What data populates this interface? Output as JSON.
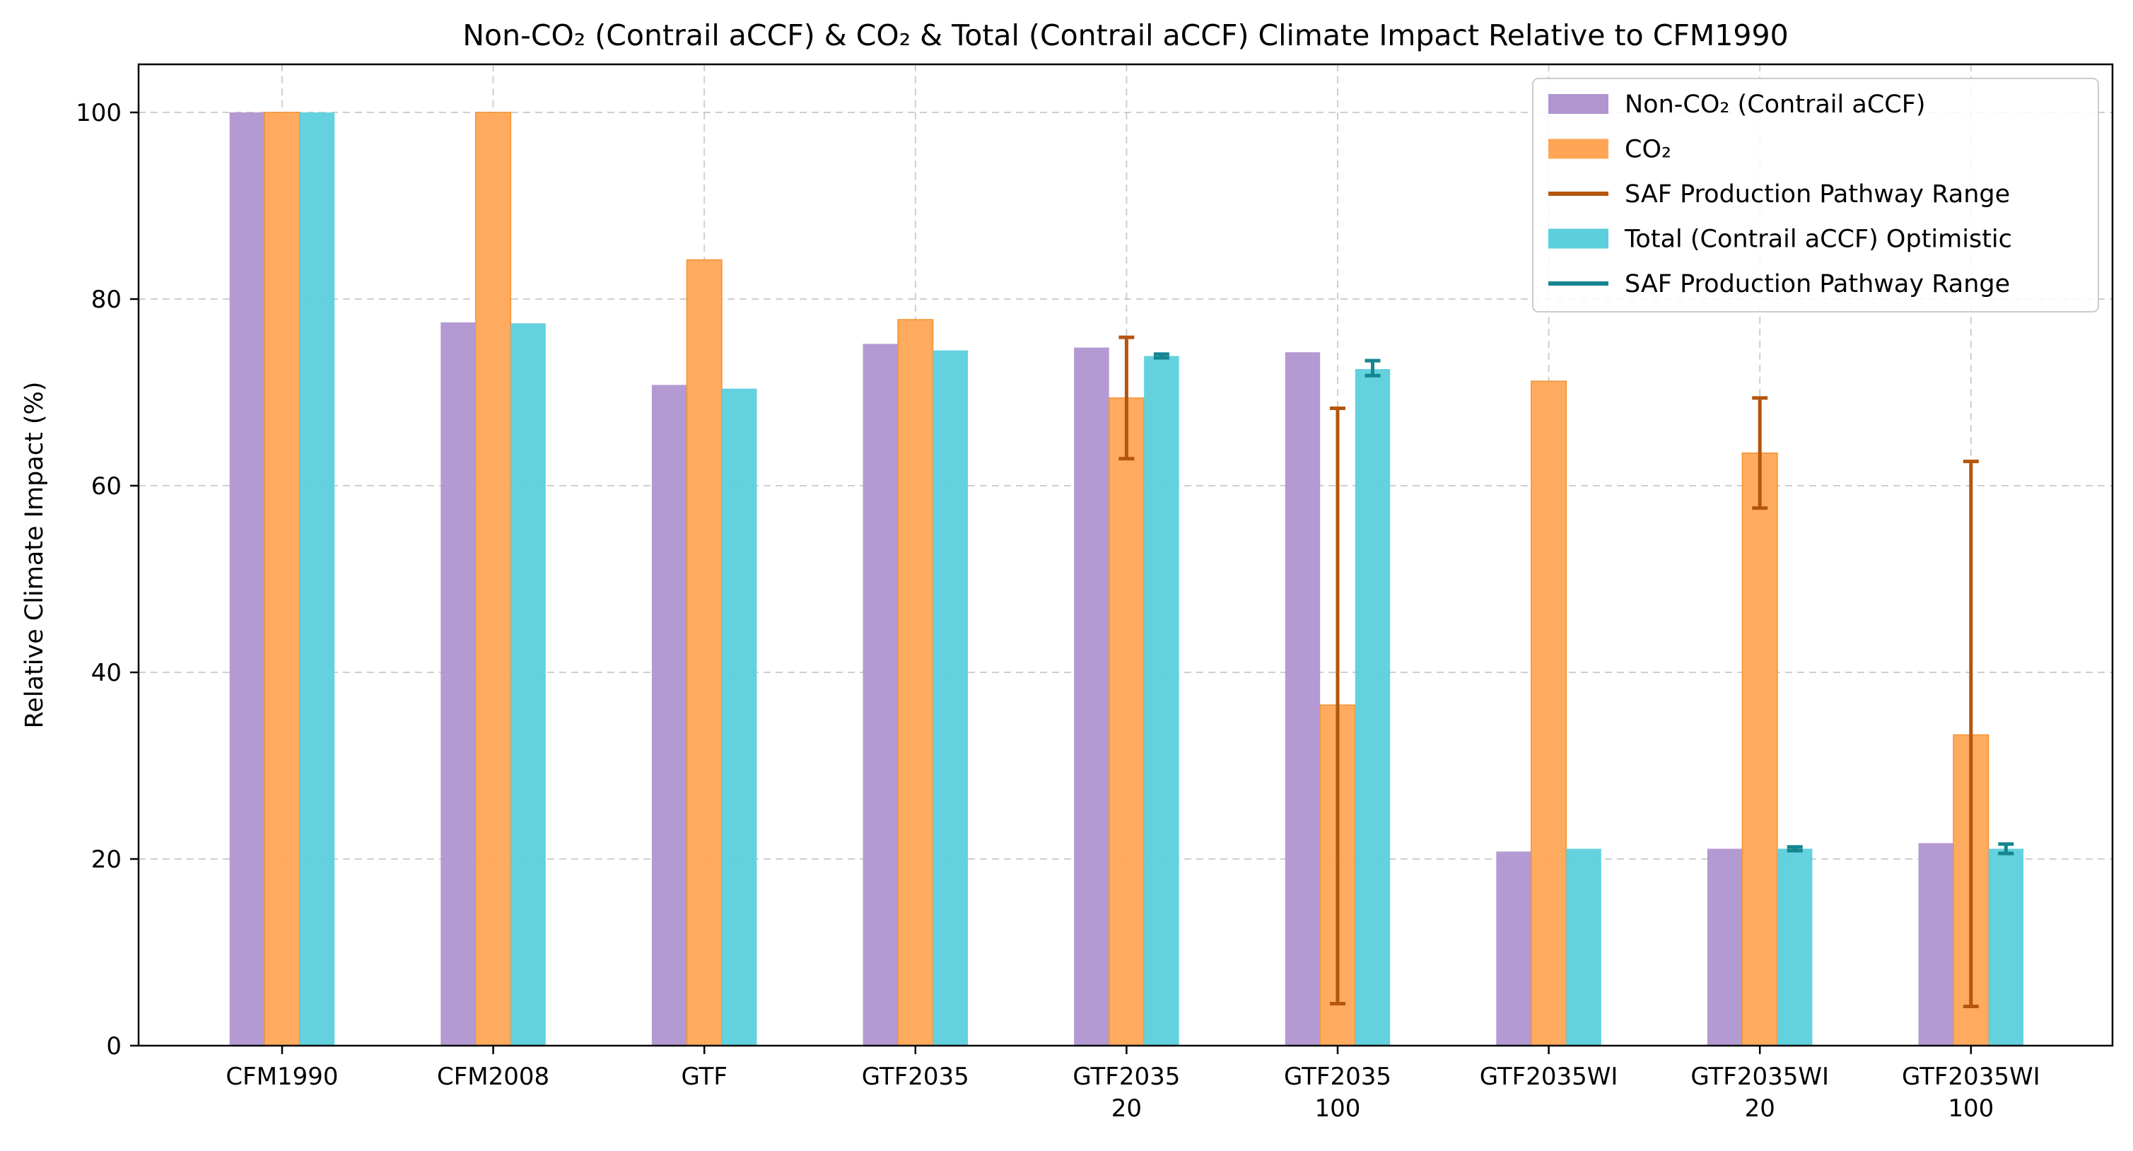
{
  "chart_data": {
    "type": "bar",
    "title": "Non-CO₂ (Contrail aCCF) & CO₂ & Total (Contrail aCCF) Climate Impact Relative to CFM1990",
    "xlabel": "",
    "ylabel": "Relative Climate Impact (%)",
    "ylim": [
      0,
      105
    ],
    "yticks": [
      0,
      20,
      40,
      60,
      80,
      100
    ],
    "grid": true,
    "legend_position": "top-right",
    "categories": [
      [
        "CFM1990"
      ],
      [
        "CFM2008"
      ],
      [
        "GTF"
      ],
      [
        "GTF2035"
      ],
      [
        "GTF2035",
        "20"
      ],
      [
        "GTF2035",
        "100"
      ],
      [
        "GTF2035WI"
      ],
      [
        "GTF2035WI",
        "20"
      ],
      [
        "GTF2035WI",
        "100"
      ]
    ],
    "series": [
      {
        "name": "Non-CO₂ (Contrail aCCF)",
        "color": "#b095d0",
        "values": [
          100,
          77.5,
          70.8,
          75.2,
          74.8,
          74.3,
          20.8,
          21.1,
          21.7
        ]
      },
      {
        "name": "CO₂",
        "color": "#ffa656",
        "edge_color": "#f39234",
        "values": [
          100,
          100,
          84.2,
          77.8,
          69.4,
          36.5,
          71.2,
          63.5,
          33.3
        ],
        "error_range": [
          null,
          null,
          null,
          null,
          [
            62.9,
            75.9
          ],
          [
            4.5,
            68.3
          ],
          null,
          [
            57.6,
            69.4
          ],
          [
            4.2,
            62.6
          ]
        ]
      },
      {
        "name": "Total (Contrail aCCF) Optimistic",
        "color": "#5ccfdd",
        "values": [
          100,
          77.4,
          70.4,
          74.5,
          73.9,
          72.5,
          21.1,
          21.1,
          21.1
        ],
        "error_range": [
          null,
          null,
          null,
          null,
          [
            73.7,
            74.1
          ],
          [
            71.8,
            73.4
          ],
          null,
          [
            20.9,
            21.3
          ],
          [
            20.6,
            21.6
          ]
        ]
      }
    ],
    "legend": [
      {
        "label": "Non-CO₂ (Contrail aCCF)",
        "kind": "patch",
        "color": "#b095d0"
      },
      {
        "label": "CO₂",
        "kind": "patch",
        "color": "#ffa656"
      },
      {
        "label": "SAF Production Pathway Range",
        "kind": "line",
        "color": "#b4560e"
      },
      {
        "label": "Total (Contrail aCCF) Optimistic",
        "kind": "patch",
        "color": "#5ccfdd"
      },
      {
        "label": "SAF Production Pathway Range",
        "kind": "line",
        "color": "#15858f"
      }
    ],
    "error_colors": [
      "#b4560e",
      "#15858f"
    ]
  }
}
